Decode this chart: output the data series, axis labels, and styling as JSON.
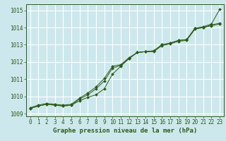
{
  "title": "Graphe pression niveau de la mer (hPa)",
  "bg_color": "#cce8ec",
  "grid_color": "#ffffff",
  "line_color": "#2d5a1b",
  "x_values": [
    0,
    1,
    2,
    3,
    4,
    5,
    6,
    7,
    8,
    9,
    10,
    11,
    12,
    13,
    14,
    15,
    16,
    17,
    18,
    19,
    20,
    21,
    22,
    23
  ],
  "line1": [
    1009.35,
    1009.5,
    1009.6,
    1009.55,
    1009.5,
    1009.55,
    1009.9,
    1010.2,
    1010.55,
    1011.05,
    1011.75,
    1011.85,
    1012.25,
    1012.55,
    1012.6,
    1012.65,
    1013.0,
    1013.1,
    1013.25,
    1013.3,
    1013.95,
    1014.05,
    1014.2,
    1015.05
  ],
  "line2": [
    1009.3,
    1009.45,
    1009.55,
    1009.5,
    1009.45,
    1009.5,
    1009.85,
    1010.1,
    1010.45,
    1010.9,
    1011.65,
    1011.8,
    1012.2,
    1012.55,
    1012.6,
    1012.6,
    1012.95,
    1013.05,
    1013.2,
    1013.25,
    1013.9,
    1014.0,
    1014.15,
    1014.25
  ],
  "line3": [
    1009.3,
    1009.45,
    1009.55,
    1009.5,
    1009.45,
    1009.5,
    1009.75,
    1009.95,
    1010.1,
    1010.45,
    1011.3,
    1011.75,
    1012.2,
    1012.55,
    1012.6,
    1012.65,
    1013.0,
    1013.1,
    1013.25,
    1013.3,
    1013.95,
    1014.0,
    1014.1,
    1014.2
  ],
  "ylim": [
    1008.85,
    1015.35
  ],
  "yticks": [
    1009,
    1010,
    1011,
    1012,
    1013,
    1014,
    1015
  ],
  "xticks": [
    0,
    1,
    2,
    3,
    4,
    5,
    6,
    7,
    8,
    9,
    10,
    11,
    12,
    13,
    14,
    15,
    16,
    17,
    18,
    19,
    20,
    21,
    22,
    23
  ],
  "tick_fontsize": 5.5,
  "title_fontsize": 6.5,
  "marker_size": 2.0,
  "linewidth": 0.7
}
